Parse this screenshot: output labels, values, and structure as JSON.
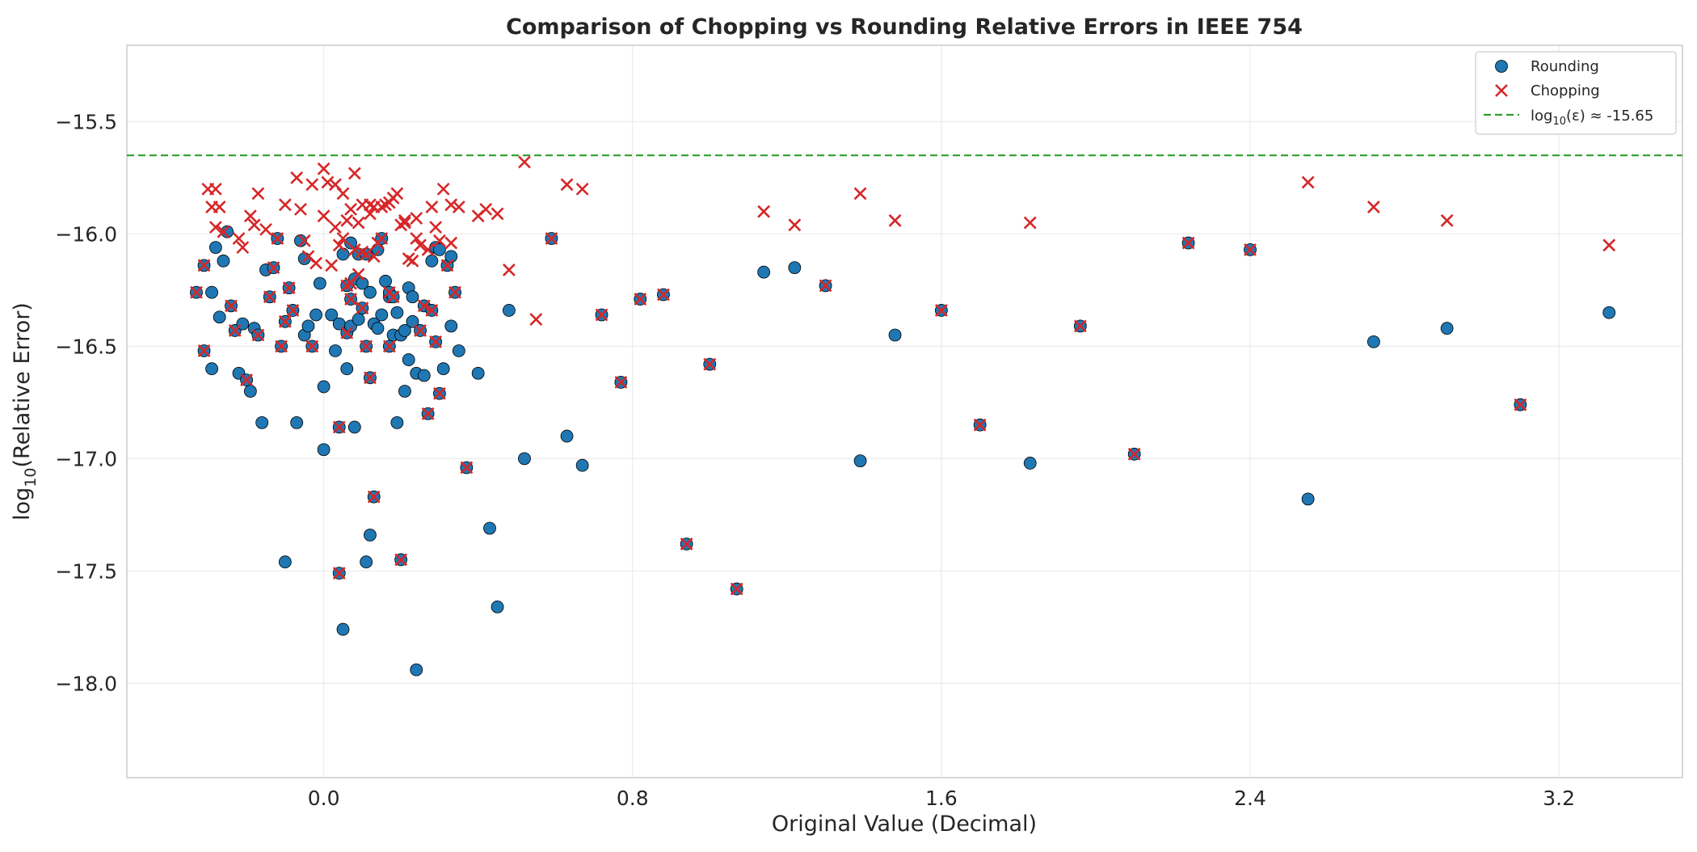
{
  "chart_data": {
    "type": "scatter",
    "title": "Comparison of Chopping vs Rounding Relative Errors in IEEE 754",
    "xlabel": "Original Value (Decimal)",
    "ylabel_prefix": "log",
    "ylabel_sub": "10",
    "ylabel_suffix": "(Relative Error)",
    "xlim": [
      -0.51,
      3.52
    ],
    "ylim": [
      -18.42,
      -15.16
    ],
    "xticks": [
      0.0,
      0.8,
      1.6,
      2.4,
      3.2
    ],
    "xtick_labels": [
      "0.0",
      "0.8",
      "1.6",
      "2.4",
      "3.2"
    ],
    "yticks": [
      -15.5,
      -16.0,
      -16.5,
      -17.0,
      -17.5,
      -18.0
    ],
    "ytick_labels": [
      "−15.5",
      "−16.0",
      "−16.5",
      "−17.0",
      "−17.5",
      "−18.0"
    ],
    "grid": true,
    "legend_position": "top-right",
    "colors": {
      "rounding": "#1f77b4",
      "chopping": "#d62728",
      "epsilon": "#2ca02c"
    },
    "legend": {
      "rounding": "Rounding",
      "chopping": "Chopping",
      "epsilon_prefix": "log",
      "epsilon_sub": "10",
      "epsilon_suffix": "(ε) ≈ -15.65"
    },
    "epsilon_line": -15.65,
    "series": [
      {
        "name": "Rounding",
        "marker": "circle",
        "points": [
          [
            -0.33,
            -16.26
          ],
          [
            -0.31,
            -16.52
          ],
          [
            -0.31,
            -16.14
          ],
          [
            -0.29,
            -16.6
          ],
          [
            -0.29,
            -16.26
          ],
          [
            -0.28,
            -16.06
          ],
          [
            -0.27,
            -16.37
          ],
          [
            -0.26,
            -16.12
          ],
          [
            -0.25,
            -15.99
          ],
          [
            -0.24,
            -16.32
          ],
          [
            -0.23,
            -16.43
          ],
          [
            -0.22,
            -16.62
          ],
          [
            -0.21,
            -16.4
          ],
          [
            -0.2,
            -16.65
          ],
          [
            -0.19,
            -16.7
          ],
          [
            -0.18,
            -16.42
          ],
          [
            -0.17,
            -16.45
          ],
          [
            -0.16,
            -16.84
          ],
          [
            -0.15,
            -16.16
          ],
          [
            -0.14,
            -16.28
          ],
          [
            -0.13,
            -16.15
          ],
          [
            -0.12,
            -16.02
          ],
          [
            -0.11,
            -16.5
          ],
          [
            -0.1,
            -16.39
          ],
          [
            -0.1,
            -17.46
          ],
          [
            -0.09,
            -16.24
          ],
          [
            -0.08,
            -16.34
          ],
          [
            -0.07,
            -16.84
          ],
          [
            -0.06,
            -16.03
          ],
          [
            -0.05,
            -16.45
          ],
          [
            -0.05,
            -16.11
          ],
          [
            -0.04,
            -16.41
          ],
          [
            -0.03,
            -16.5
          ],
          [
            -0.02,
            -16.36
          ],
          [
            -0.01,
            -16.22
          ],
          [
            0.0,
            -16.68
          ],
          [
            0.0,
            -16.96
          ],
          [
            0.02,
            -16.36
          ],
          [
            0.03,
            -16.52
          ],
          [
            0.04,
            -16.4
          ],
          [
            0.04,
            -16.86
          ],
          [
            0.04,
            -17.51
          ],
          [
            0.05,
            -16.09
          ],
          [
            0.05,
            -17.76
          ],
          [
            0.06,
            -16.6
          ],
          [
            0.06,
            -16.44
          ],
          [
            0.06,
            -16.23
          ],
          [
            0.07,
            -16.41
          ],
          [
            0.07,
            -16.29
          ],
          [
            0.07,
            -16.04
          ],
          [
            0.08,
            -16.86
          ],
          [
            0.08,
            -16.2
          ],
          [
            0.09,
            -16.38
          ],
          [
            0.09,
            -16.09
          ],
          [
            0.1,
            -16.33
          ],
          [
            0.1,
            -16.22
          ],
          [
            0.11,
            -16.5
          ],
          [
            0.11,
            -16.09
          ],
          [
            0.11,
            -17.46
          ],
          [
            0.12,
            -16.64
          ],
          [
            0.12,
            -16.26
          ],
          [
            0.12,
            -17.34
          ],
          [
            0.13,
            -16.4
          ],
          [
            0.13,
            -17.17
          ],
          [
            0.14,
            -16.42
          ],
          [
            0.14,
            -16.07
          ],
          [
            0.15,
            -16.02
          ],
          [
            0.15,
            -16.36
          ],
          [
            0.16,
            -16.21
          ],
          [
            0.17,
            -16.28
          ],
          [
            0.17,
            -16.26
          ],
          [
            0.17,
            -16.5
          ],
          [
            0.18,
            -16.45
          ],
          [
            0.18,
            -16.28
          ],
          [
            0.19,
            -16.84
          ],
          [
            0.19,
            -16.35
          ],
          [
            0.2,
            -16.45
          ],
          [
            0.2,
            -17.45
          ],
          [
            0.21,
            -16.43
          ],
          [
            0.21,
            -16.7
          ],
          [
            0.22,
            -16.56
          ],
          [
            0.22,
            -16.24
          ],
          [
            0.23,
            -16.28
          ],
          [
            0.23,
            -16.39
          ],
          [
            0.24,
            -16.62
          ],
          [
            0.24,
            -17.94
          ],
          [
            0.25,
            -16.43
          ],
          [
            0.26,
            -16.32
          ],
          [
            0.26,
            -16.63
          ],
          [
            0.27,
            -16.8
          ],
          [
            0.28,
            -16.34
          ],
          [
            0.28,
            -16.12
          ],
          [
            0.29,
            -16.06
          ],
          [
            0.29,
            -16.48
          ],
          [
            0.3,
            -16.71
          ],
          [
            0.3,
            -16.07
          ],
          [
            0.31,
            -16.6
          ],
          [
            0.32,
            -16.14
          ],
          [
            0.33,
            -16.41
          ],
          [
            0.33,
            -16.1
          ],
          [
            0.34,
            -16.26
          ],
          [
            0.35,
            -16.52
          ],
          [
            0.37,
            -17.04
          ],
          [
            0.4,
            -16.62
          ],
          [
            0.43,
            -17.31
          ],
          [
            0.45,
            -17.66
          ],
          [
            0.48,
            -16.34
          ],
          [
            0.52,
            -17.0
          ],
          [
            0.59,
            -16.02
          ],
          [
            0.63,
            -16.9
          ],
          [
            0.67,
            -17.03
          ],
          [
            0.72,
            -16.36
          ],
          [
            0.77,
            -16.66
          ],
          [
            0.82,
            -16.29
          ],
          [
            0.88,
            -16.27
          ],
          [
            0.94,
            -17.38
          ],
          [
            1.0,
            -16.58
          ],
          [
            1.07,
            -17.58
          ],
          [
            1.14,
            -16.17
          ],
          [
            1.22,
            -16.15
          ],
          [
            1.3,
            -16.23
          ],
          [
            1.39,
            -17.01
          ],
          [
            1.48,
            -16.45
          ],
          [
            1.6,
            -16.34
          ],
          [
            1.7,
            -16.85
          ],
          [
            1.83,
            -17.02
          ],
          [
            1.96,
            -16.41
          ],
          [
            2.1,
            -16.98
          ],
          [
            2.24,
            -16.04
          ],
          [
            2.4,
            -16.07
          ],
          [
            2.55,
            -17.18
          ],
          [
            2.72,
            -16.48
          ],
          [
            2.91,
            -16.42
          ],
          [
            3.1,
            -16.76
          ],
          [
            3.33,
            -16.35
          ]
        ]
      },
      {
        "name": "Chopping",
        "marker": "x",
        "points": [
          [
            -0.33,
            -16.26
          ],
          [
            -0.31,
            -16.52
          ],
          [
            -0.31,
            -16.14
          ],
          [
            -0.24,
            -16.32
          ],
          [
            -0.23,
            -16.43
          ],
          [
            -0.2,
            -16.65
          ],
          [
            -0.17,
            -16.45
          ],
          [
            -0.14,
            -16.28
          ],
          [
            -0.13,
            -16.15
          ],
          [
            -0.12,
            -16.02
          ],
          [
            -0.11,
            -16.5
          ],
          [
            -0.1,
            -16.39
          ],
          [
            -0.09,
            -16.24
          ],
          [
            -0.08,
            -16.34
          ],
          [
            -0.03,
            -16.5
          ],
          [
            0.04,
            -16.86
          ],
          [
            0.04,
            -17.51
          ],
          [
            0.06,
            -16.44
          ],
          [
            0.06,
            -16.23
          ],
          [
            0.07,
            -16.29
          ],
          [
            0.1,
            -16.33
          ],
          [
            0.11,
            -16.5
          ],
          [
            0.12,
            -16.64
          ],
          [
            0.13,
            -17.17
          ],
          [
            0.15,
            -16.02
          ],
          [
            0.17,
            -16.26
          ],
          [
            0.17,
            -16.5
          ],
          [
            0.18,
            -16.28
          ],
          [
            0.2,
            -17.45
          ],
          [
            0.25,
            -16.43
          ],
          [
            0.26,
            -16.32
          ],
          [
            0.27,
            -16.8
          ],
          [
            0.28,
            -16.34
          ],
          [
            0.29,
            -16.48
          ],
          [
            0.3,
            -16.71
          ],
          [
            0.32,
            -16.14
          ],
          [
            0.34,
            -16.26
          ],
          [
            0.37,
            -17.04
          ],
          [
            0.59,
            -16.02
          ],
          [
            0.55,
            -16.38
          ],
          [
            0.72,
            -16.36
          ],
          [
            0.77,
            -16.66
          ],
          [
            0.82,
            -16.29
          ],
          [
            0.88,
            -16.27
          ],
          [
            0.94,
            -17.38
          ],
          [
            1.0,
            -16.58
          ],
          [
            1.07,
            -17.58
          ],
          [
            1.3,
            -16.23
          ],
          [
            1.6,
            -16.34
          ],
          [
            1.7,
            -16.85
          ],
          [
            1.96,
            -16.41
          ],
          [
            2.1,
            -16.98
          ],
          [
            2.24,
            -16.04
          ],
          [
            2.4,
            -16.07
          ],
          [
            3.1,
            -16.76
          ],
          [
            -0.3,
            -15.8
          ],
          [
            -0.28,
            -15.8
          ],
          [
            -0.29,
            -15.88
          ],
          [
            -0.27,
            -15.88
          ],
          [
            -0.28,
            -15.97
          ],
          [
            -0.26,
            -15.99
          ],
          [
            -0.22,
            -16.02
          ],
          [
            -0.21,
            -16.06
          ],
          [
            -0.19,
            -15.92
          ],
          [
            -0.18,
            -15.96
          ],
          [
            -0.17,
            -15.82
          ],
          [
            -0.15,
            -15.98
          ],
          [
            -0.1,
            -15.87
          ],
          [
            -0.07,
            -15.75
          ],
          [
            -0.06,
            -15.89
          ],
          [
            -0.05,
            -16.03
          ],
          [
            -0.04,
            -16.1
          ],
          [
            -0.03,
            -15.78
          ],
          [
            -0.02,
            -16.13
          ],
          [
            0.0,
            -15.71
          ],
          [
            0.0,
            -15.92
          ],
          [
            0.01,
            -15.77
          ],
          [
            0.02,
            -16.14
          ],
          [
            0.03,
            -15.78
          ],
          [
            0.03,
            -15.97
          ],
          [
            0.04,
            -16.05
          ],
          [
            0.05,
            -16.02
          ],
          [
            0.05,
            -15.82
          ],
          [
            0.06,
            -15.94
          ],
          [
            0.07,
            -16.22
          ],
          [
            0.07,
            -15.89
          ],
          [
            0.08,
            -15.73
          ],
          [
            0.08,
            -16.07
          ],
          [
            0.09,
            -15.95
          ],
          [
            0.09,
            -16.18
          ],
          [
            0.1,
            -15.87
          ],
          [
            0.1,
            -16.08
          ],
          [
            0.11,
            -16.09
          ],
          [
            0.12,
            -15.91
          ],
          [
            0.12,
            -15.87
          ],
          [
            0.13,
            -16.1
          ],
          [
            0.13,
            -15.88
          ],
          [
            0.14,
            -16.04
          ],
          [
            0.15,
            -15.88
          ],
          [
            0.16,
            -15.87
          ],
          [
            0.17,
            -15.86
          ],
          [
            0.18,
            -15.84
          ],
          [
            0.19,
            -15.82
          ],
          [
            0.2,
            -15.96
          ],
          [
            0.21,
            -15.94
          ],
          [
            0.21,
            -15.95
          ],
          [
            0.22,
            -16.11
          ],
          [
            0.23,
            -16.12
          ],
          [
            0.24,
            -15.93
          ],
          [
            0.24,
            -16.02
          ],
          [
            0.25,
            -16.05
          ],
          [
            0.27,
            -16.07
          ],
          [
            0.28,
            -15.88
          ],
          [
            0.29,
            -15.97
          ],
          [
            0.3,
            -16.03
          ],
          [
            0.31,
            -15.8
          ],
          [
            0.33,
            -15.87
          ],
          [
            0.33,
            -16.04
          ],
          [
            0.35,
            -15.88
          ],
          [
            0.4,
            -15.92
          ],
          [
            0.42,
            -15.89
          ],
          [
            0.45,
            -15.91
          ],
          [
            0.48,
            -16.16
          ],
          [
            0.52,
            -15.68
          ],
          [
            0.63,
            -15.78
          ],
          [
            0.67,
            -15.8
          ],
          [
            1.14,
            -15.9
          ],
          [
            1.22,
            -15.96
          ],
          [
            1.39,
            -15.82
          ],
          [
            1.48,
            -15.94
          ],
          [
            1.83,
            -15.95
          ],
          [
            2.55,
            -15.77
          ],
          [
            2.72,
            -15.88
          ],
          [
            2.91,
            -15.94
          ],
          [
            3.33,
            -16.05
          ]
        ]
      }
    ]
  }
}
